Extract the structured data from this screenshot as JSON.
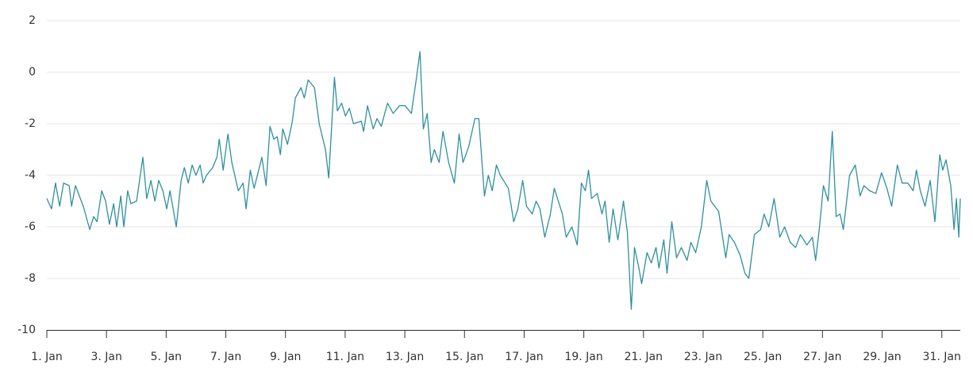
{
  "chart_data": {
    "type": "line",
    "x": [
      1.0,
      1.16,
      1.29,
      1.43,
      1.56,
      1.75,
      1.83,
      1.96,
      2.22,
      2.44,
      2.57,
      2.68,
      2.84,
      2.97,
      3.1,
      3.24,
      3.34,
      3.48,
      3.58,
      3.71,
      3.82,
      4.01,
      4.22,
      4.35,
      4.49,
      4.62,
      4.75,
      4.89,
      5.02,
      5.13,
      5.34,
      5.5,
      5.61,
      5.74,
      5.87,
      6.0,
      6.14,
      6.24,
      6.35,
      6.56,
      6.7,
      6.78,
      6.91,
      7.07,
      7.2,
      7.42,
      7.58,
      7.68,
      7.82,
      7.95,
      8.21,
      8.35,
      8.48,
      8.61,
      8.72,
      8.83,
      8.91,
      9.07,
      9.23,
      9.33,
      9.52,
      9.63,
      9.76,
      9.97,
      10.13,
      10.34,
      10.45,
      10.64,
      10.74,
      10.88,
      11.01,
      11.14,
      11.28,
      11.54,
      11.62,
      11.75,
      11.94,
      12.07,
      12.21,
      12.42,
      12.61,
      12.82,
      13.01,
      13.22,
      13.38,
      13.51,
      13.62,
      13.75,
      13.88,
      13.99,
      14.15,
      14.28,
      14.47,
      14.66,
      14.82,
      14.95,
      15.14,
      15.35,
      15.48,
      15.67,
      15.8,
      15.93,
      16.07,
      16.2,
      16.47,
      16.65,
      16.79,
      16.95,
      17.08,
      17.27,
      17.4,
      17.53,
      17.69,
      17.88,
      18.01,
      18.28,
      18.41,
      18.6,
      18.78,
      18.92,
      19.05,
      19.16,
      19.26,
      19.45,
      19.61,
      19.71,
      19.85,
      19.98,
      20.14,
      20.33,
      20.46,
      20.59,
      20.7,
      20.83,
      20.94,
      21.12,
      21.26,
      21.42,
      21.52,
      21.68,
      21.79,
      21.95,
      22.11,
      22.27,
      22.46,
      22.59,
      22.75,
      22.94,
      23.12,
      23.26,
      23.52,
      23.76,
      23.87,
      24.05,
      24.24,
      24.4,
      24.53,
      24.72,
      24.93,
      25.04,
      25.2,
      25.38,
      25.57,
      25.73,
      25.92,
      26.1,
      26.26,
      26.48,
      26.66,
      26.77,
      26.9,
      27.03,
      27.19,
      27.33,
      27.46,
      27.59,
      27.7,
      27.91,
      28.1,
      28.26,
      28.39,
      28.58,
      28.79,
      28.98,
      29.16,
      29.32,
      29.51,
      29.67,
      29.86,
      30.04,
      30.15,
      30.28,
      30.44,
      30.61,
      30.77,
      30.93,
      31.03,
      31.14,
      31.3,
      31.41,
      31.49,
      31.57,
      31.62
    ],
    "series": [
      {
        "color": "#2f8fa0",
        "values": [
          -4.9,
          -5.3,
          -4.3,
          -5.2,
          -4.3,
          -4.4,
          -5.2,
          -4.4,
          -5.2,
          -6.1,
          -5.6,
          -5.8,
          -4.6,
          -5.0,
          -5.9,
          -5.1,
          -6.0,
          -4.8,
          -6.0,
          -4.6,
          -5.1,
          -5.0,
          -3.3,
          -4.9,
          -4.2,
          -5.0,
          -4.2,
          -4.6,
          -5.3,
          -4.6,
          -6.0,
          -4.2,
          -3.7,
          -4.3,
          -3.6,
          -4.0,
          -3.6,
          -4.3,
          -4.0,
          -3.7,
          -3.3,
          -2.6,
          -3.8,
          -2.4,
          -3.5,
          -4.6,
          -4.3,
          -5.3,
          -3.8,
          -4.5,
          -3.3,
          -4.4,
          -2.1,
          -2.6,
          -2.5,
          -3.2,
          -2.2,
          -2.8,
          -1.9,
          -1.0,
          -0.6,
          -1.0,
          -0.3,
          -0.6,
          -2.0,
          -3.0,
          -4.1,
          -0.2,
          -1.5,
          -1.2,
          -1.7,
          -1.4,
          -2.0,
          -1.9,
          -2.3,
          -1.3,
          -2.2,
          -1.8,
          -2.1,
          -1.2,
          -1.6,
          -1.3,
          -1.3,
          -1.6,
          -0.3,
          0.8,
          -2.2,
          -1.6,
          -3.5,
          -3.0,
          -3.5,
          -2.3,
          -3.5,
          -4.3,
          -2.4,
          -3.5,
          -2.9,
          -1.8,
          -1.8,
          -4.8,
          -4.0,
          -4.6,
          -3.6,
          -4.0,
          -4.5,
          -5.8,
          -5.3,
          -4.2,
          -5.2,
          -5.5,
          -5.0,
          -5.3,
          -6.4,
          -5.5,
          -4.5,
          -5.5,
          -6.4,
          -6.0,
          -6.7,
          -4.3,
          -4.6,
          -3.8,
          -4.9,
          -4.7,
          -5.5,
          -5.0,
          -6.6,
          -5.3,
          -6.5,
          -5.0,
          -6.2,
          -9.2,
          -6.8,
          -7.5,
          -8.2,
          -7.0,
          -7.4,
          -6.8,
          -7.6,
          -6.5,
          -7.8,
          -5.8,
          -7.2,
          -6.8,
          -7.3,
          -6.6,
          -7.0,
          -6.0,
          -4.2,
          -5.0,
          -5.4,
          -7.2,
          -6.3,
          -6.6,
          -7.1,
          -7.8,
          -8.0,
          -6.3,
          -6.1,
          -5.5,
          -6.0,
          -4.9,
          -6.4,
          -6.0,
          -6.6,
          -6.8,
          -6.3,
          -6.7,
          -6.4,
          -7.3,
          -6.0,
          -4.4,
          -5.0,
          -2.3,
          -5.6,
          -5.5,
          -6.1,
          -4.0,
          -3.6,
          -4.8,
          -4.4,
          -4.6,
          -4.7,
          -3.9,
          -4.5,
          -5.2,
          -3.6,
          -4.3,
          -4.3,
          -4.6,
          -3.8,
          -4.6,
          -5.2,
          -4.2,
          -5.8,
          -3.2,
          -3.8,
          -3.4,
          -4.4,
          -6.1,
          -4.9,
          -6.4,
          -4.9
        ]
      }
    ],
    "xlim": [
      1,
      31.62
    ],
    "xticks": [
      {
        "value": 1,
        "label": "1. Jan"
      },
      {
        "value": 3,
        "label": "3. Jan"
      },
      {
        "value": 5,
        "label": "5. Jan"
      },
      {
        "value": 7,
        "label": "7. Jan"
      },
      {
        "value": 9,
        "label": "9. Jan"
      },
      {
        "value": 11,
        "label": "11. Jan"
      },
      {
        "value": 13,
        "label": "13. Jan"
      },
      {
        "value": 15,
        "label": "15. Jan"
      },
      {
        "value": 17,
        "label": "17. Jan"
      },
      {
        "value": 19,
        "label": "19. Jan"
      },
      {
        "value": 21,
        "label": "21. Jan"
      },
      {
        "value": 23,
        "label": "23. Jan"
      },
      {
        "value": 25,
        "label": "25. Jan"
      },
      {
        "value": 27,
        "label": "27. Jan"
      },
      {
        "value": 29,
        "label": "29. Jan"
      },
      {
        "value": 31,
        "label": "31. Jan"
      }
    ],
    "ylim": [
      -10,
      2
    ],
    "yticks": [
      -10,
      -8,
      -6,
      -4,
      -2,
      0,
      2
    ],
    "grid": true
  }
}
